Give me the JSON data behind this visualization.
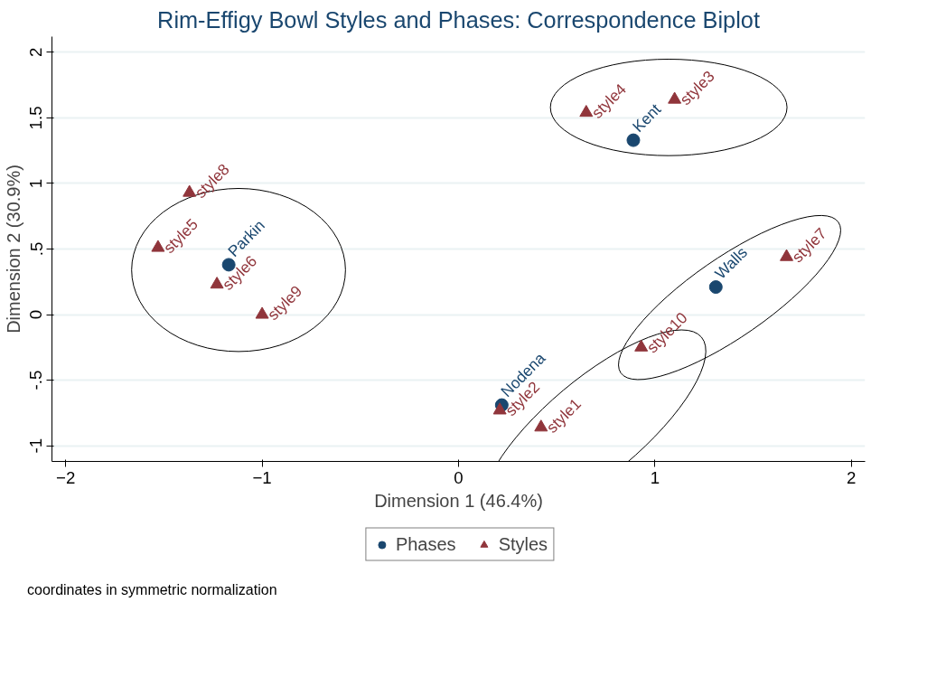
{
  "chart_data": {
    "type": "scatter",
    "title": "Rim-Effigy Bowl Styles and Phases: Correspondence Biplot",
    "xlabel": "Dimension 1 (46.4%)",
    "ylabel": "Dimension 2 (30.9%)",
    "xlim": [
      -2.07,
      2.07
    ],
    "ylim": [
      -1.12,
      2.12
    ],
    "xticks": [
      -2,
      -1,
      0,
      1,
      2
    ],
    "yticks": [
      {
        "value": -1,
        "label": "-1"
      },
      {
        "value": -0.5,
        "label": "-.5"
      },
      {
        "value": 0,
        "label": "0"
      },
      {
        "value": 0.5,
        "label": ".5"
      },
      {
        "value": 1,
        "label": "1"
      },
      {
        "value": 1.5,
        "label": "1.5"
      },
      {
        "value": 2,
        "label": "2"
      }
    ],
    "grid": "y",
    "legend": "bottom",
    "annotations": [
      "coordinates in symmetric normalization"
    ],
    "series": [
      {
        "name": "Phases",
        "color": "#1a476f",
        "marker": "circle",
        "x": [
          0.89,
          -1.17,
          1.31,
          0.22
        ],
        "values": [
          1.33,
          0.38,
          0.21,
          -0.69
        ],
        "value_labels": [
          "Kent",
          "Parkin",
          "Walls",
          "Nodena"
        ]
      },
      {
        "name": "Styles",
        "color": "#90353b",
        "marker": "triangle",
        "x": [
          0.42,
          0.21,
          1.1,
          0.65,
          -1.53,
          -1.23,
          1.67,
          -1.37,
          -1.0,
          0.93
        ],
        "values": [
          -0.86,
          -0.73,
          1.64,
          1.54,
          0.51,
          0.23,
          0.44,
          0.93,
          0.0,
          -0.25
        ],
        "value_labels": [
          "style1",
          "style2",
          "style3",
          "style4",
          "style5",
          "style6",
          "style7",
          "style8",
          "style9",
          "style10"
        ]
      }
    ]
  }
}
